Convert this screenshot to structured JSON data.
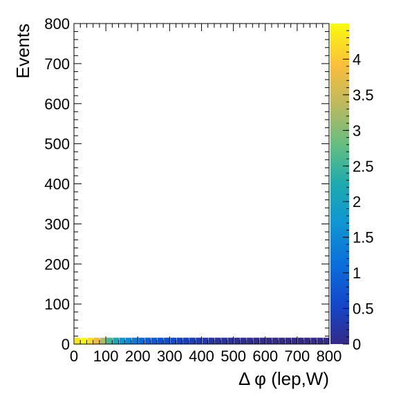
{
  "chart_data": {
    "type": "heatmap",
    "title": "",
    "xlabel": "Δ φ (lep,W)",
    "ylabel": "Events",
    "xlim": [
      0,
      800
    ],
    "ylim": [
      0,
      800
    ],
    "x_ticks": [
      "0",
      "100",
      "200",
      "300",
      "400",
      "500",
      "600",
      "700",
      "800"
    ],
    "y_ticks": [
      "0",
      "100",
      "200",
      "300",
      "400",
      "500",
      "600",
      "700",
      "800"
    ],
    "colorbar": {
      "range": [
        0,
        4.5
      ],
      "ticks": [
        "0",
        "0.5",
        "1",
        "1.5",
        "2",
        "2.5",
        "3",
        "3.5",
        "4"
      ]
    },
    "bins": {
      "x_bin_width": 20,
      "y_range": [
        0,
        16
      ],
      "values": [
        4.3,
        4.5,
        4.2,
        3.8,
        3.3,
        2.6,
        2.2,
        1.7,
        1.5,
        1.3,
        1.1,
        0.95,
        0.85,
        0.75,
        0.7,
        0.6,
        0.5,
        0.45,
        0.4,
        0.35,
        0.3,
        0.25,
        0.2,
        0.18,
        0.15,
        0.12,
        0.1,
        0.08,
        0.06,
        0.05,
        0.04,
        0.03,
        0.02,
        0.02,
        0.02,
        0.02,
        0.02,
        0.02,
        0.02,
        0.02
      ]
    },
    "grid": false,
    "legend": "none"
  }
}
